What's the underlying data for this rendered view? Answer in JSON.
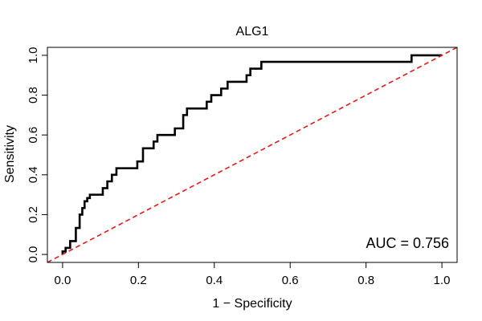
{
  "chart_data": {
    "type": "line",
    "title": "ALG1",
    "xlabel": "1 − Specificity",
    "ylabel": "Sensitivity",
    "xlim": [
      -0.04,
      1.04
    ],
    "ylim": [
      -0.04,
      1.04
    ],
    "xticks": [
      {
        "value": 0.0,
        "label": "0.0"
      },
      {
        "value": 0.2,
        "label": "0.2"
      },
      {
        "value": 0.4,
        "label": "0.4"
      },
      {
        "value": 0.6,
        "label": "0.6"
      },
      {
        "value": 0.8,
        "label": "0.8"
      },
      {
        "value": 1.0,
        "label": "1.0"
      }
    ],
    "yticks": [
      {
        "value": 0.0,
        "label": "0.0"
      },
      {
        "value": 0.2,
        "label": "0.2"
      },
      {
        "value": 0.4,
        "label": "0.4"
      },
      {
        "value": 0.6,
        "label": "0.6"
      },
      {
        "value": 0.8,
        "label": "0.8"
      },
      {
        "value": 1.0,
        "label": "1.0"
      }
    ],
    "grid": false,
    "annotation": "AUC = 0.756",
    "series": [
      {
        "color": "#000000",
        "style": "solid",
        "x": [
          0.0,
          0.0,
          0.008,
          0.008,
          0.02,
          0.02,
          0.035,
          0.035,
          0.045,
          0.045,
          0.052,
          0.052,
          0.058,
          0.058,
          0.065,
          0.065,
          0.072,
          0.072,
          0.08,
          0.08,
          0.106,
          0.106,
          0.118,
          0.118,
          0.13,
          0.13,
          0.142,
          0.142,
          0.197,
          0.197,
          0.212,
          0.212,
          0.24,
          0.24,
          0.25,
          0.25,
          0.296,
          0.296,
          0.318,
          0.318,
          0.328,
          0.328,
          0.335,
          0.335,
          0.38,
          0.38,
          0.392,
          0.392,
          0.418,
          0.418,
          0.435,
          0.435,
          0.485,
          0.485,
          0.495,
          0.495,
          0.524,
          0.524,
          0.92,
          0.92,
          1.0
        ],
        "y": [
          0.0,
          0.015,
          0.015,
          0.033,
          0.033,
          0.067,
          0.067,
          0.133,
          0.133,
          0.2,
          0.2,
          0.233,
          0.233,
          0.267,
          0.267,
          0.283,
          0.283,
          0.3,
          0.3,
          0.3,
          0.3,
          0.333,
          0.333,
          0.367,
          0.367,
          0.4,
          0.4,
          0.433,
          0.433,
          0.467,
          0.467,
          0.533,
          0.533,
          0.567,
          0.567,
          0.6,
          0.6,
          0.633,
          0.633,
          0.7,
          0.7,
          0.733,
          0.733,
          0.733,
          0.733,
          0.767,
          0.767,
          0.8,
          0.8,
          0.833,
          0.833,
          0.867,
          0.867,
          0.9,
          0.9,
          0.933,
          0.933,
          0.967,
          0.967,
          1.0,
          1.0
        ]
      },
      {
        "color": "#e31a1c",
        "style": "dashed",
        "x": [
          -0.04,
          1.04
        ],
        "y": [
          -0.04,
          1.04
        ]
      }
    ]
  }
}
